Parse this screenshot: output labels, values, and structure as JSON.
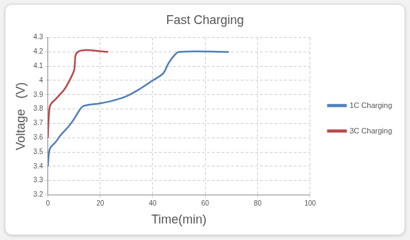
{
  "chart_data": {
    "type": "line",
    "title": "Fast Charging",
    "x_label": "Time(min)",
    "y_label": "Voltage   (V)",
    "series": [
      {
        "name": "1C Charging",
        "color": "#4f7fb8",
        "x": [
          0,
          0.5,
          1,
          3,
          5,
          8,
          10,
          12,
          13.5,
          20,
          25,
          30,
          35,
          40,
          44,
          46,
          48,
          50,
          69
        ],
        "values": [
          3.4,
          3.5,
          3.53,
          3.57,
          3.62,
          3.68,
          3.73,
          3.79,
          3.82,
          3.84,
          3.86,
          3.89,
          3.94,
          4.0,
          4.05,
          4.12,
          4.17,
          4.2,
          4.2
        ]
      },
      {
        "name": "3C Charging",
        "color": "#b9474a",
        "x": [
          0,
          0.5,
          1,
          3,
          6,
          8,
          10,
          11.5,
          23
        ],
        "values": [
          3.6,
          3.78,
          3.83,
          3.87,
          3.93,
          3.99,
          4.07,
          4.2,
          4.2
        ]
      }
    ],
    "xlim": [
      0,
      100
    ],
    "xticks": [
      0,
      20,
      40,
      60,
      80,
      100
    ],
    "ylim": [
      3.2,
      4.3
    ],
    "yticks": [
      3.2,
      3.3,
      3.4,
      3.5,
      3.6,
      3.7,
      3.8,
      3.9,
      4,
      4.1,
      4.2,
      4.3
    ],
    "grid": true,
    "legend": "right"
  }
}
